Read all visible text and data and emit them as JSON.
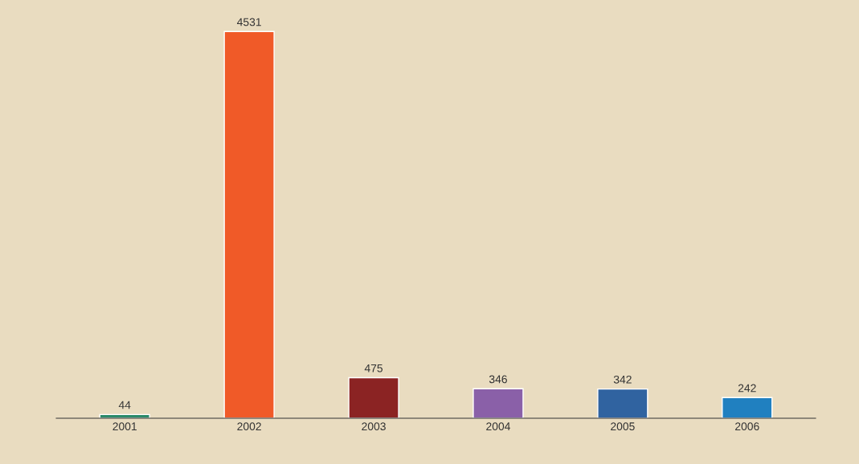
{
  "chart_data": {
    "type": "bar",
    "categories": [
      "2001",
      "2002",
      "2003",
      "2004",
      "2005",
      "2006"
    ],
    "values": [
      44,
      4531,
      475,
      346,
      342,
      242
    ],
    "colors": [
      "#2a8a6a",
      "#f05a28",
      "#8b2323",
      "#8a60a8",
      "#3063a0",
      "#2080c0"
    ],
    "data_labels": true,
    "grid": false,
    "legend": false
  }
}
